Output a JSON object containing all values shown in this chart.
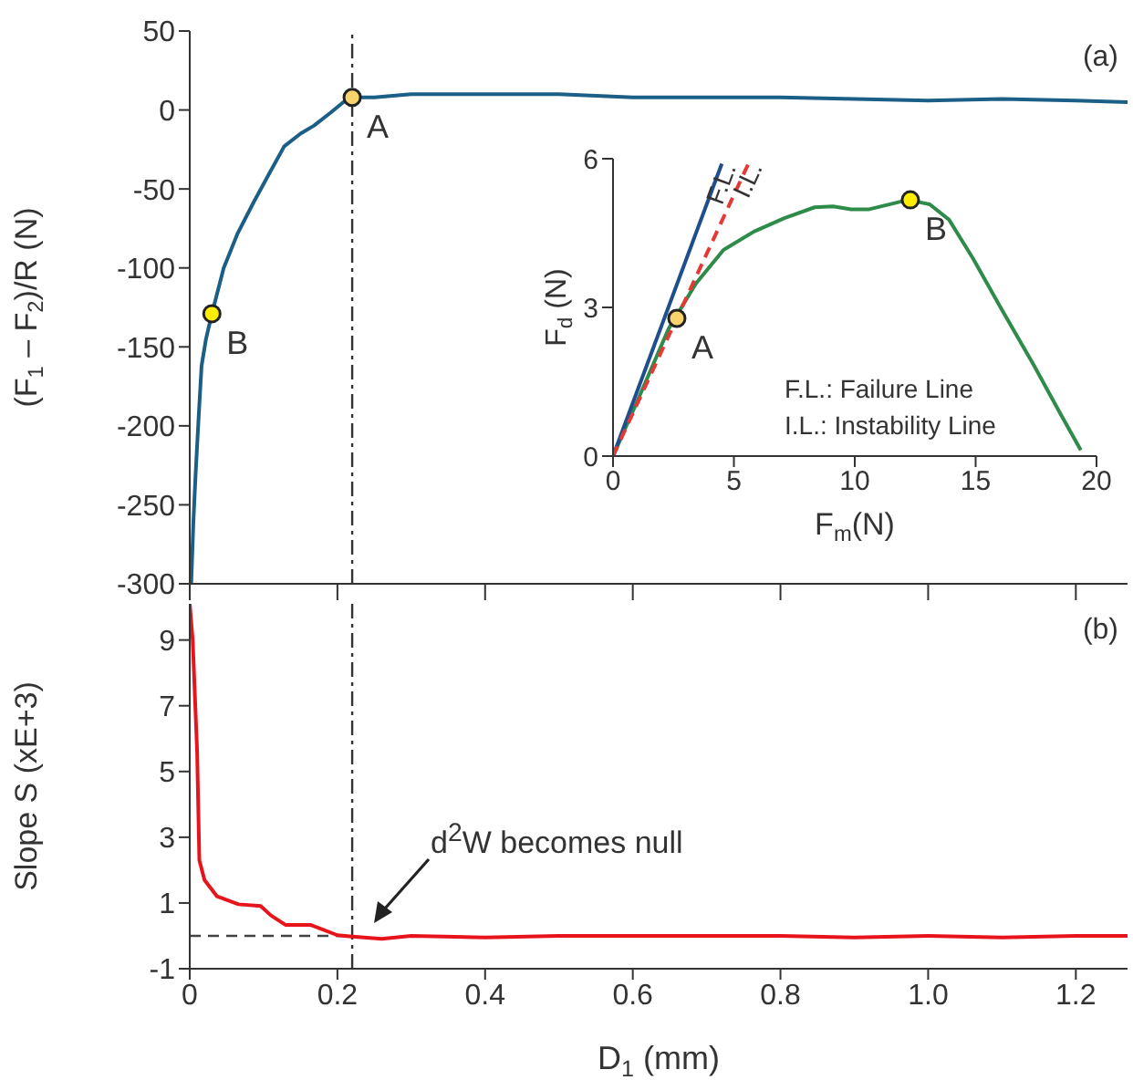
{
  "chart_data": [
    {
      "type": "line",
      "ylabel": "(F$_{1}$ – F$_{2}$)/R (N)",
      "xlim": [
        0,
        1.27
      ],
      "xticks": [
        0,
        0.2,
        0.4,
        0.6,
        0.8,
        1,
        1.2
      ],
      "ylim": [
        -300,
        50
      ],
      "yticks": [
        -300,
        -250,
        -200,
        -150,
        -100,
        -50,
        0,
        50
      ],
      "tick_labels": "y",
      "series": [
        {
          "color": "#1b5e86",
          "x": [
            0.002,
            0.005,
            0.008,
            0.012,
            0.016,
            0.022,
            0.03,
            0.046,
            0.065,
            0.087,
            0.108,
            0.128,
            0.15,
            0.168,
            0.19,
            0.216,
            0.25,
            0.3,
            0.4,
            0.5,
            0.6,
            0.7,
            0.8,
            0.9,
            1.0,
            1.1,
            1.2,
            1.27
          ],
          "values": [
            -300,
            -260,
            -230,
            -195,
            -162,
            -145,
            -129,
            -100,
            -78,
            -58,
            -40,
            -23,
            -15,
            -10,
            -2,
            8,
            8,
            10,
            10,
            10,
            8,
            8,
            8,
            7,
            6,
            7,
            6,
            5
          ]
        },
        {
          "type": "scatter",
          "name": "A",
          "color": "#f9d36b",
          "x": [
            0.22
          ],
          "values": [
            8
          ]
        },
        {
          "type": "scatter",
          "name": "B",
          "color": "#ffee00",
          "x": [
            0.03
          ],
          "values": [
            -129
          ]
        }
      ],
      "ref_lines": [
        {
          "axis": "x",
          "value": 0.22,
          "line_style": "dashdot",
          "color": "#333333"
        }
      ],
      "annotations": [
        "(a)"
      ]
    },
    {
      "type": "line",
      "xlabel": "F$_{m}$(N)",
      "ylabel": "F$_{d}$ (N)",
      "xlim": [
        0,
        20
      ],
      "xticks": [
        0,
        5,
        10,
        15,
        20
      ],
      "ylim": [
        0,
        6
      ],
      "yticks": [
        0,
        3,
        6
      ],
      "series": [
        {
          "color": "#2e8b4a",
          "x": [
            0,
            1.05,
            2.3,
            3.44,
            4.57,
            5.83,
            7.09,
            8.34,
            9.1,
            9.85,
            10.6,
            12.2,
            13.1,
            13.9,
            14.9,
            16.1,
            17.4,
            18.5,
            19.35
          ],
          "values": [
            0,
            1.16,
            2.57,
            3.49,
            4.16,
            4.53,
            4.8,
            5.02,
            5.04,
            4.98,
            4.98,
            5.17,
            5.08,
            4.77,
            3.98,
            2.94,
            1.84,
            0.86,
            0.12
          ]
        },
        {
          "name": "F.L.",
          "color": "#1f4e8c",
          "x": [
            0,
            4.5
          ],
          "values": [
            0,
            5.9
          ]
        },
        {
          "name": "I.L.",
          "color": "#e53935",
          "line_style": "dashed",
          "x": [
            0,
            5.6
          ],
          "values": [
            0,
            5.9
          ]
        },
        {
          "type": "scatter",
          "name": "A",
          "color": "#f9d36b",
          "x": [
            2.64
          ],
          "values": [
            2.78
          ]
        },
        {
          "type": "scatter",
          "name": "B",
          "color": "#ffee00",
          "x": [
            12.3
          ],
          "values": [
            5.17
          ]
        }
      ],
      "annotations": [
        "F.L.: Failure Line",
        "I.L.: Instability Line"
      ]
    },
    {
      "type": "line",
      "xlabel": "D$_{1}$ (mm)",
      "ylabel": "Slope S (xE+3)",
      "xlim": [
        0,
        1.27
      ],
      "xticks": [
        0,
        0.2,
        0.4,
        0.6,
        0.8,
        {
          "value": 1,
          "label": "1.0"
        },
        1.2
      ],
      "ylim": [
        -1,
        10.1
      ],
      "yticks": [
        -1,
        1,
        3,
        5,
        7,
        9
      ],
      "series": [
        {
          "color": "#e8141c",
          "x": [
            0,
            0.004,
            0.01,
            0.013,
            0.02,
            0.037,
            0.066,
            0.096,
            0.11,
            0.13,
            0.164,
            0.2,
            0.22,
            0.26,
            0.3,
            0.4,
            0.5,
            0.6,
            0.7,
            0.8,
            0.9,
            1.0,
            1.1,
            1.2,
            1.27
          ],
          "values": [
            10.1,
            9,
            5.6,
            2.3,
            1.7,
            1.2,
            0.96,
            0.91,
            0.62,
            0.33,
            0.33,
            0.02,
            -0.02,
            -0.09,
            0,
            -0.05,
            0,
            0,
            0,
            0,
            -0.05,
            0,
            -0.05,
            0,
            0
          ]
        }
      ],
      "ref_lines": [
        {
          "axis": "x",
          "value": 0.22,
          "line_style": "dashdot",
          "color": "#333333"
        },
        {
          "axis": "y",
          "value": 0,
          "line_style": "dashed",
          "color": "#444444"
        }
      ],
      "annotations": [
        "(b)",
        "d$^{2}$W becomes null"
      ]
    }
  ]
}
